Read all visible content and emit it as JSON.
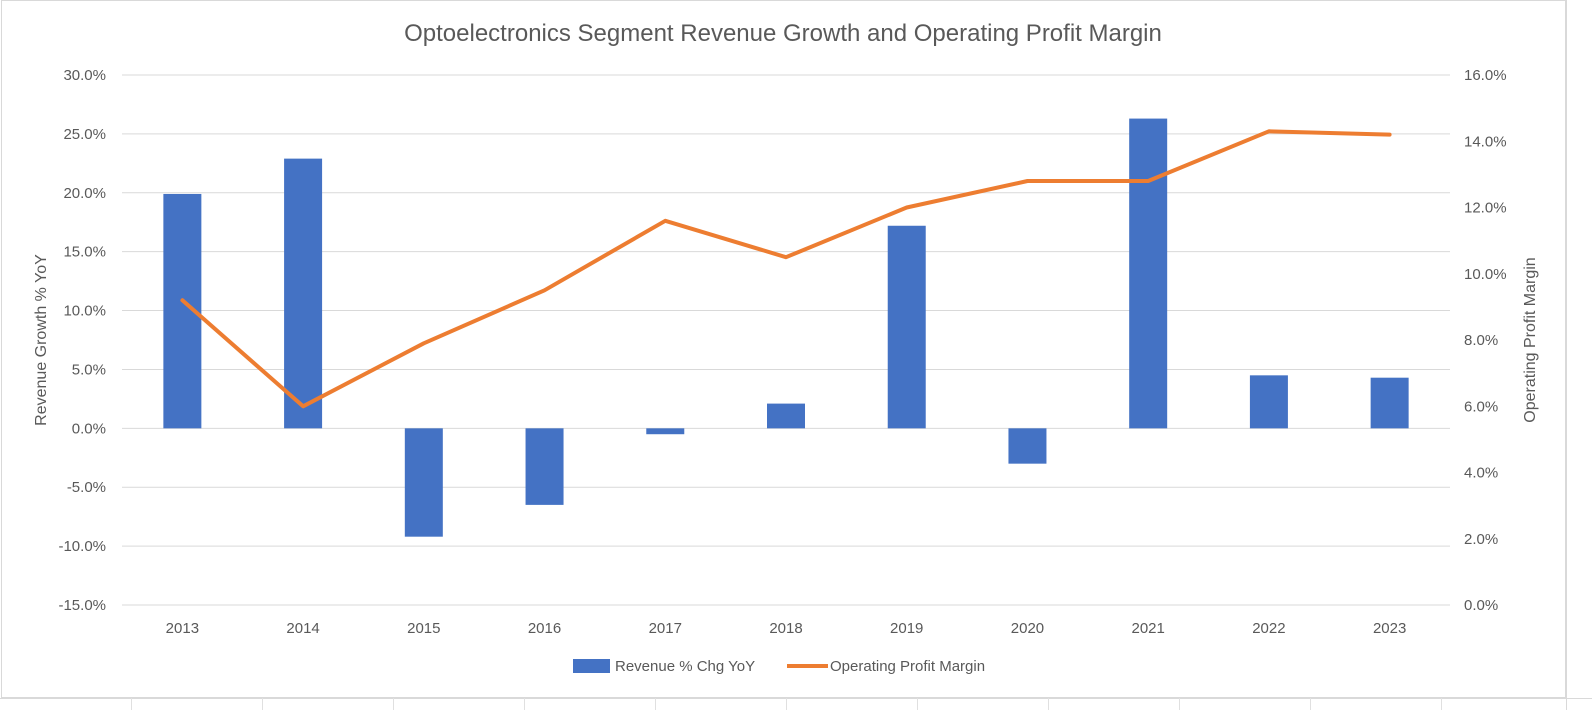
{
  "chart_data": {
    "type": "bar",
    "title": "Optoelectronics Segment Revenue Growth and Operating Profit Margin",
    "categories": [
      "2013",
      "2014",
      "2015",
      "2016",
      "2017",
      "2018",
      "2019",
      "2020",
      "2021",
      "2022",
      "2023"
    ],
    "series": [
      {
        "name": "Revenue % Chg YoY",
        "type": "bar",
        "axis": "left",
        "color": "#4472C4",
        "values": [
          19.9,
          22.9,
          -9.2,
          -6.5,
          -0.5,
          2.1,
          17.2,
          -3.0,
          26.3,
          4.5,
          4.3
        ]
      },
      {
        "name": "Operating Profit Margin",
        "type": "line",
        "axis": "right",
        "color": "#ED7D31",
        "values": [
          9.2,
          6.0,
          7.9,
          9.5,
          11.6,
          10.5,
          12.0,
          12.8,
          12.8,
          14.3,
          14.2
        ]
      }
    ],
    "ylabel": "Revenue Growth % YoY",
    "ylim": [
      -15,
      30
    ],
    "yticks": [
      "30.0%",
      "25.0%",
      "20.0%",
      "15.0%",
      "10.0%",
      "5.0%",
      "0.0%",
      "-5.0%",
      "-10.0%",
      "-15.0%"
    ],
    "y2label": "Operating Profit Margin",
    "y2lim": [
      0,
      16
    ],
    "y2ticks": [
      "16.0%",
      "14.0%",
      "12.0%",
      "10.0%",
      "8.0%",
      "6.0%",
      "4.0%",
      "2.0%",
      "0.0%"
    ],
    "grid": true,
    "legend": "bottom"
  }
}
